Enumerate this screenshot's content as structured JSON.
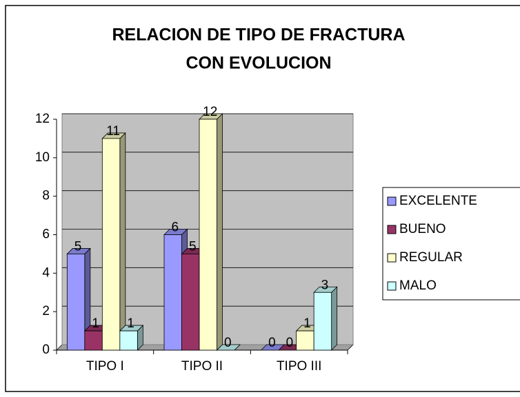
{
  "chart_data": {
    "type": "bar3d",
    "title": [
      "RELACION DE TIPO DE FRACTURA",
      "CON EVOLUCION"
    ],
    "categories": [
      "TIPO I",
      "TIPO II",
      "TIPO III"
    ],
    "series": [
      {
        "name": "EXCELENTE",
        "color": "#9999ff",
        "values": [
          5,
          6,
          0
        ]
      },
      {
        "name": "BUENO",
        "color": "#993366",
        "values": [
          1,
          5,
          0
        ]
      },
      {
        "name": "REGULAR",
        "color": "#ffffcc",
        "values": [
          11,
          12,
          1
        ]
      },
      {
        "name": "MALO",
        "color": "#ccffff",
        "values": [
          1,
          0,
          3
        ]
      }
    ],
    "ylim": [
      0,
      12
    ],
    "yticks": [
      0,
      2,
      4,
      6,
      8,
      10,
      12
    ],
    "grid": true,
    "legend": "right"
  }
}
